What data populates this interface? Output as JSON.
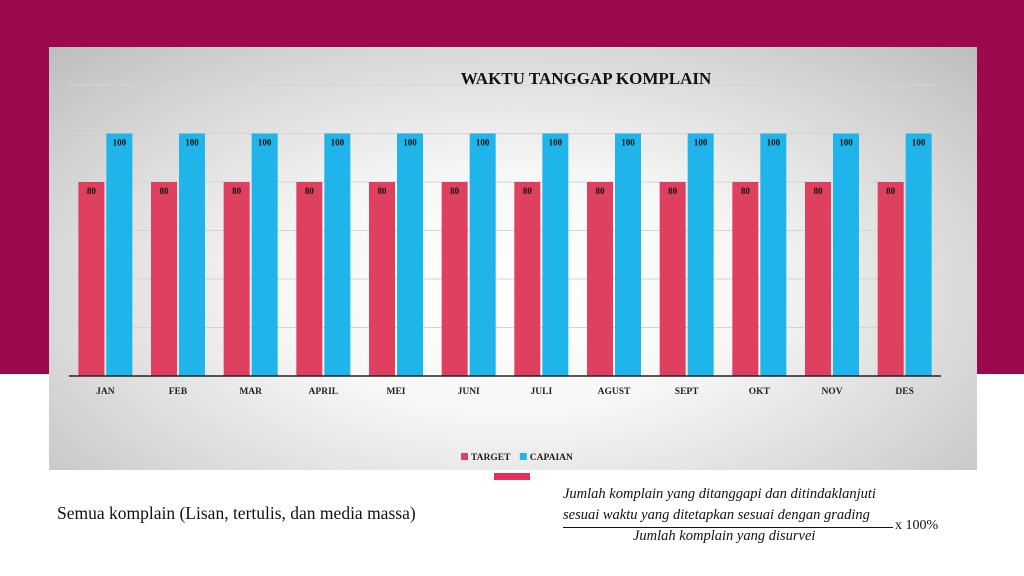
{
  "slide": {
    "caption": "Semua komplain (Lisan, tertulis, dan media massa)",
    "formula": {
      "numerator_line1": "Jumlah komplain yang ditanggapi dan ditindaklanjuti",
      "numerator_line2": "sesuai waktu yang ditetapkan sesuai dengan grading",
      "denominator": "Jumlah komplain yang disurvei",
      "multiplier": "x 100%"
    }
  },
  "colors": {
    "band": "#9b0a4b",
    "target": "#e0405f",
    "capaian": "#1fb5ea",
    "accent": "#e0315a"
  },
  "chart_data": {
    "type": "bar",
    "title": "WAKTU TANGGAP KOMPLAIN",
    "categories": [
      "JAN",
      "FEB",
      "MAR",
      "APRIL",
      "MEI",
      "JUNI",
      "JULI",
      "AGUST",
      "SEPT",
      "OKT",
      "NOV",
      "DES"
    ],
    "series": [
      {
        "name": "TARGET",
        "values": [
          80,
          80,
          80,
          80,
          80,
          80,
          80,
          80,
          80,
          80,
          80,
          80
        ]
      },
      {
        "name": "CAPAIAN",
        "values": [
          100,
          100,
          100,
          100,
          100,
          100,
          100,
          100,
          100,
          100,
          100,
          100
        ]
      }
    ],
    "xlabel": "",
    "ylabel": "",
    "ylim": [
      0,
      120
    ],
    "grid": true,
    "legend": "bottom"
  }
}
